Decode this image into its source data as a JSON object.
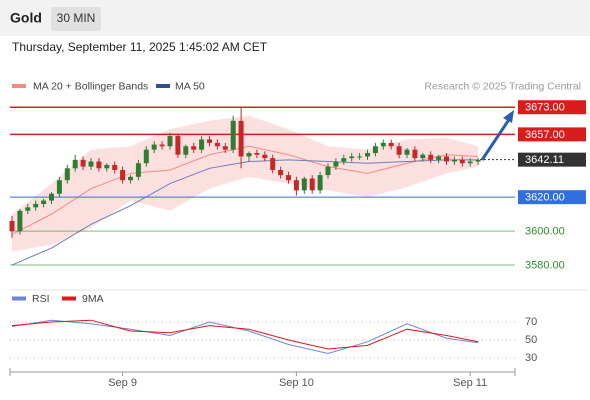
{
  "header": {
    "symbol": "Gold",
    "interval": "30 MIN"
  },
  "chart_data": [
    {
      "type": "candlestick",
      "subtitle": "Thursday, September 11, 2025 1:45:02 AM CET",
      "source": "Research © 2025 Trading Central",
      "up_color": "#2e7d32",
      "down_color": "#c62828",
      "ylim": [
        3570,
        3692
      ],
      "open": [
        3606,
        3600,
        3612,
        3614,
        3616,
        3618,
        3622,
        3630,
        3637,
        3642,
        3638,
        3641,
        3637,
        3639,
        3636,
        3630,
        3632,
        3640,
        3648,
        3651,
        3650,
        3656,
        3645,
        3650,
        3648,
        3654,
        3652,
        3650,
        3648,
        3665,
        3644,
        3646,
        3645,
        3643,
        3636,
        3633,
        3630,
        3624,
        3631,
        3624,
        3633,
        3638,
        3641,
        3643,
        3644,
        3644,
        3646,
        3650,
        3652,
        3650,
        3645,
        3648,
        3643,
        3645,
        3642,
        3644,
        3641,
        3642,
        3640,
        3641
      ],
      "high": [
        3609,
        3613,
        3616,
        3618,
        3619,
        3623,
        3632,
        3639,
        3645,
        3644,
        3643,
        3643,
        3640,
        3641,
        3638,
        3633,
        3642,
        3650,
        3653,
        3653,
        3658,
        3657,
        3651,
        3652,
        3656,
        3656,
        3654,
        3652,
        3668,
        3673,
        3647,
        3648,
        3647,
        3645,
        3638,
        3635,
        3632,
        3632,
        3633,
        3635,
        3640,
        3643,
        3645,
        3646,
        3646,
        3648,
        3652,
        3654,
        3654,
        3652,
        3649,
        3650,
        3646,
        3647,
        3645,
        3646,
        3644,
        3644,
        3643,
        3643
      ],
      "low": [
        3596,
        3598,
        3610,
        3612,
        3614,
        3616,
        3620,
        3628,
        3635,
        3636,
        3636,
        3635,
        3635,
        3634,
        3628,
        3628,
        3630,
        3638,
        3646,
        3648,
        3648,
        3643,
        3643,
        3646,
        3646,
        3650,
        3648,
        3646,
        3646,
        3637,
        3641,
        3643,
        3641,
        3634,
        3631,
        3628,
        3621,
        3622,
        3622,
        3622,
        3631,
        3636,
        3639,
        3641,
        3642,
        3642,
        3644,
        3648,
        3648,
        3643,
        3643,
        3641,
        3641,
        3640,
        3640,
        3639,
        3639,
        3638,
        3638,
        3639
      ],
      "close": [
        3600,
        3612,
        3614,
        3616,
        3618,
        3622,
        3630,
        3637,
        3642,
        3638,
        3641,
        3637,
        3639,
        3636,
        3630,
        3632,
        3640,
        3648,
        3651,
        3650,
        3656,
        3645,
        3650,
        3648,
        3654,
        3652,
        3650,
        3648,
        3665,
        3644,
        3646,
        3645,
        3643,
        3636,
        3633,
        3630,
        3624,
        3631,
        3624,
        3633,
        3638,
        3641,
        3643,
        3644,
        3644,
        3646,
        3650,
        3652,
        3650,
        3645,
        3648,
        3643,
        3645,
        3642,
        3644,
        3641,
        3642,
        3640,
        3641,
        3642
      ],
      "overlay_x": [
        0,
        5,
        10,
        15,
        20,
        25,
        30,
        35,
        40,
        45,
        50,
        55,
        59
      ],
      "bands": {
        "name": "MA 20 + Bollinger Bands",
        "color": "#f28b82",
        "fill": "#fbd3d3",
        "upper": [
          3610,
          3628,
          3648,
          3650,
          3660,
          3665,
          3668,
          3660,
          3650,
          3648,
          3654,
          3655,
          3650
        ],
        "middle": [
          3598,
          3610,
          3625,
          3634,
          3636,
          3645,
          3650,
          3645,
          3638,
          3634,
          3640,
          3645,
          3644
        ],
        "lower": [
          3588,
          3592,
          3602,
          3618,
          3612,
          3625,
          3632,
          3628,
          3624,
          3620,
          3626,
          3634,
          3638
        ]
      },
      "series": [
        {
          "name": "MA 50",
          "color": "#6b7fb5",
          "values": [
            3580,
            3590,
            3604,
            3615,
            3628,
            3637,
            3641,
            3642,
            3641,
            3640,
            3641,
            3642,
            3642
          ]
        }
      ],
      "legend_colors": [
        "#f28b82",
        "#2f4f8f"
      ],
      "levels": [
        {
          "value": 3673,
          "label": "3673.00",
          "color": "#d91c1c",
          "style": "box"
        },
        {
          "value": 3657,
          "label": "3657.00",
          "color": "#d91c1c",
          "style": "box"
        },
        {
          "value": 3642.11,
          "label": "3642.11",
          "color": "#333333",
          "style": "dotted"
        },
        {
          "value": 3620,
          "label": "3620.00",
          "color": "#2f6fe0",
          "style": "box"
        },
        {
          "value": 3600,
          "label": "3600.00",
          "color": "#2e8b2e",
          "style": "text"
        },
        {
          "value": 3580,
          "label": "3580.00",
          "color": "#2e8b2e",
          "style": "text"
        }
      ]
    },
    {
      "type": "line",
      "ylim": [
        20,
        90
      ],
      "yticks": [
        70,
        50,
        30
      ],
      "x": [
        0,
        5,
        10,
        15,
        20,
        25,
        30,
        35,
        40,
        45,
        50,
        55,
        59
      ],
      "categories_index": [
        14,
        36,
        58
      ],
      "categories": [
        "Sep 9",
        "Sep 10",
        "Sep 11"
      ],
      "series": [
        {
          "name": "RSI",
          "color": "#6f86d6",
          "values": [
            65,
            72,
            68,
            62,
            55,
            70,
            60,
            45,
            35,
            48,
            68,
            52,
            47
          ]
        },
        {
          "name": "9MA",
          "color": "#d91c1c",
          "values": [
            66,
            70,
            72,
            60,
            58,
            66,
            62,
            50,
            40,
            44,
            62,
            55,
            48
          ]
        }
      ]
    }
  ]
}
